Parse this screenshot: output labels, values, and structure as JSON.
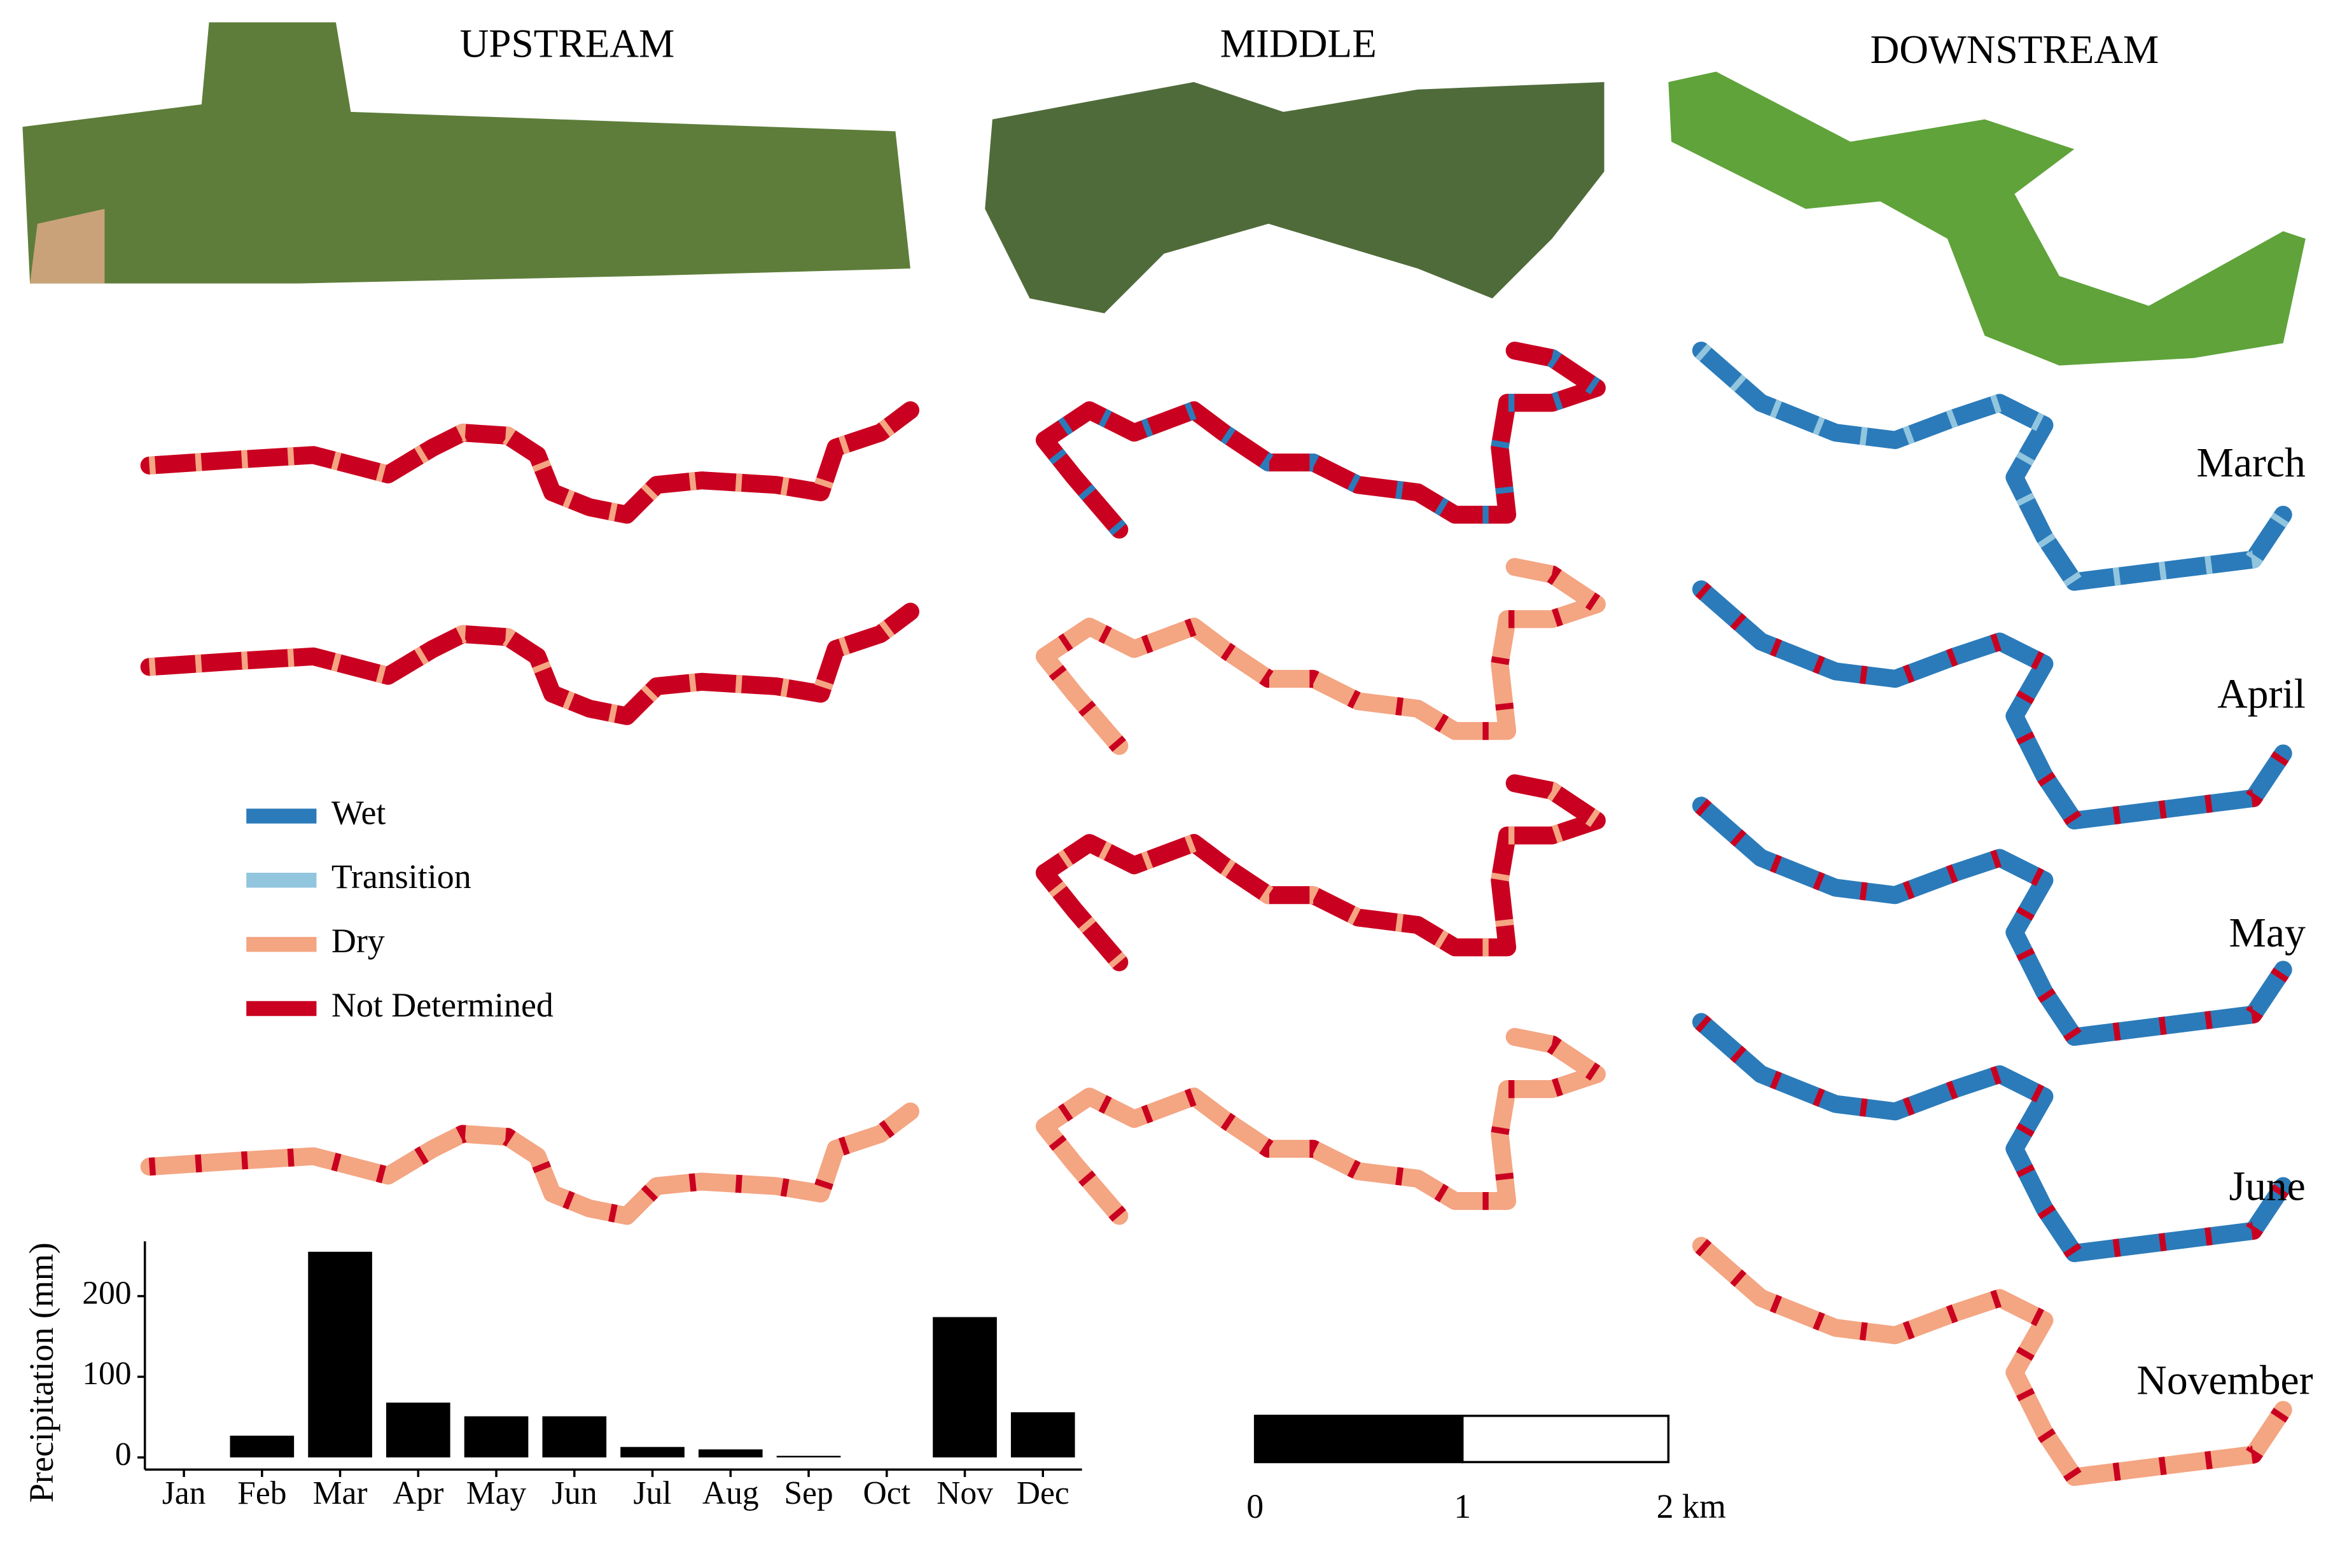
{
  "panel_titles": [
    "UPSTREAM",
    "MIDDLE",
    "DOWNSTREAM"
  ],
  "month_labels": [
    "March",
    "April",
    "May",
    "June",
    "November"
  ],
  "map_legend": [
    {
      "name": "Wet",
      "color": "#2b7bba"
    },
    {
      "name": "Transition",
      "color": "#92c5de"
    },
    {
      "name": "Dry",
      "color": "#f4a582"
    },
    {
      "name": "Not Determined",
      "color": "#ca0020"
    }
  ],
  "scale_bar": {
    "labels": [
      "0",
      "1",
      "2 km"
    ]
  },
  "chart_data": {
    "type": "bar",
    "ylabel": "Precipitation (mm)",
    "categories": [
      "Jan",
      "Feb",
      "Mar",
      "Apr",
      "May",
      "Jun",
      "Jul",
      "Aug",
      "Sep",
      "Oct",
      "Nov",
      "Dec"
    ],
    "values": [
      0,
      27,
      255,
      68,
      51,
      51,
      13,
      10,
      2,
      0,
      174,
      56
    ],
    "color": "#000000",
    "ylim": [
      -15,
      268
    ],
    "yticks": [
      0,
      100,
      200
    ]
  }
}
